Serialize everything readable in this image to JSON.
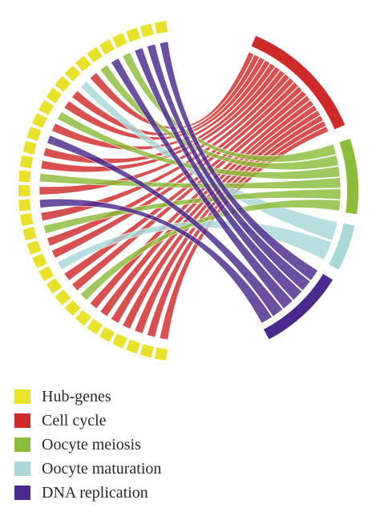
{
  "groups": [
    {
      "key": "hub",
      "label": "Hub-genes",
      "color": "#e9e22b"
    },
    {
      "key": "cell",
      "label": "Cell cycle",
      "color": "#cf2a2a"
    },
    {
      "key": "meiosis",
      "label": "Oocyte meiosis",
      "color": "#8cbc3a"
    },
    {
      "key": "maturation",
      "label": "Oocyte maturation",
      "color": "#a8d8d8"
    },
    {
      "key": "dna",
      "label": "DNA replication",
      "color": "#4a2a8c"
    }
  ],
  "gene_count": 33,
  "links": [
    [
      0,
      "dna"
    ],
    [
      1,
      "dna"
    ],
    [
      2,
      "dna"
    ],
    [
      3,
      "meiosis"
    ],
    [
      4,
      "dna"
    ],
    [
      5,
      "meiosis"
    ],
    [
      6,
      "cell"
    ],
    [
      7,
      "maturation"
    ],
    [
      8,
      "cell"
    ],
    [
      9,
      "cell"
    ],
    [
      10,
      "meiosis"
    ],
    [
      11,
      "cell"
    ],
    [
      12,
      "dna"
    ],
    [
      13,
      "cell"
    ],
    [
      14,
      "cell"
    ],
    [
      15,
      "meiosis"
    ],
    [
      16,
      "cell"
    ],
    [
      17,
      "dna"
    ],
    [
      18,
      "cell"
    ],
    [
      19,
      "meiosis"
    ],
    [
      20,
      "cell"
    ],
    [
      21,
      "cell"
    ],
    [
      22,
      "maturation"
    ],
    [
      23,
      "cell"
    ],
    [
      24,
      "cell"
    ],
    [
      25,
      "meiosis"
    ],
    [
      26,
      "cell"
    ],
    [
      27,
      "cell"
    ],
    [
      28,
      "cell"
    ],
    [
      29,
      "cell"
    ],
    [
      30,
      "cell"
    ],
    [
      31,
      "cell"
    ],
    [
      32,
      "cell"
    ]
  ]
}
